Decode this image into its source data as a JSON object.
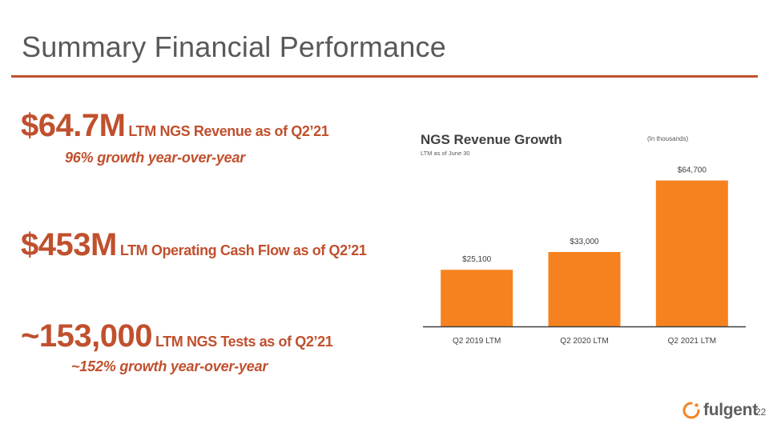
{
  "slide": {
    "title": "Summary Financial Performance",
    "page_number": "22",
    "accent_color": "#c0502e",
    "bar_color": "#f6821f"
  },
  "metrics": [
    {
      "value": "$64.7M",
      "description": "LTM NGS Revenue as of Q2’21",
      "note": "96% growth year-over-year"
    },
    {
      "value": "$453M",
      "description": "LTM Operating Cash Flow as of Q2’21",
      "note": ""
    },
    {
      "value": "~153,000",
      "description": "LTM NGS Tests as of Q2’21",
      "note": "~152% growth year-over-year"
    }
  ],
  "logo": {
    "text": "fulgent"
  },
  "chart_data": {
    "type": "bar",
    "title": "NGS Revenue Growth",
    "subtitle": "LTM as of June 30",
    "unit_note": "(In thousands)",
    "categories": [
      "Q2 2019 LTM",
      "Q2 2020 LTM",
      "Q2 2021 LTM"
    ],
    "values": [
      25100,
      33000,
      64700
    ],
    "value_labels": [
      "$25,100",
      "$33,000",
      "$64,700"
    ],
    "ylim": [
      0,
      72000
    ],
    "grid": false,
    "legend": "none"
  }
}
